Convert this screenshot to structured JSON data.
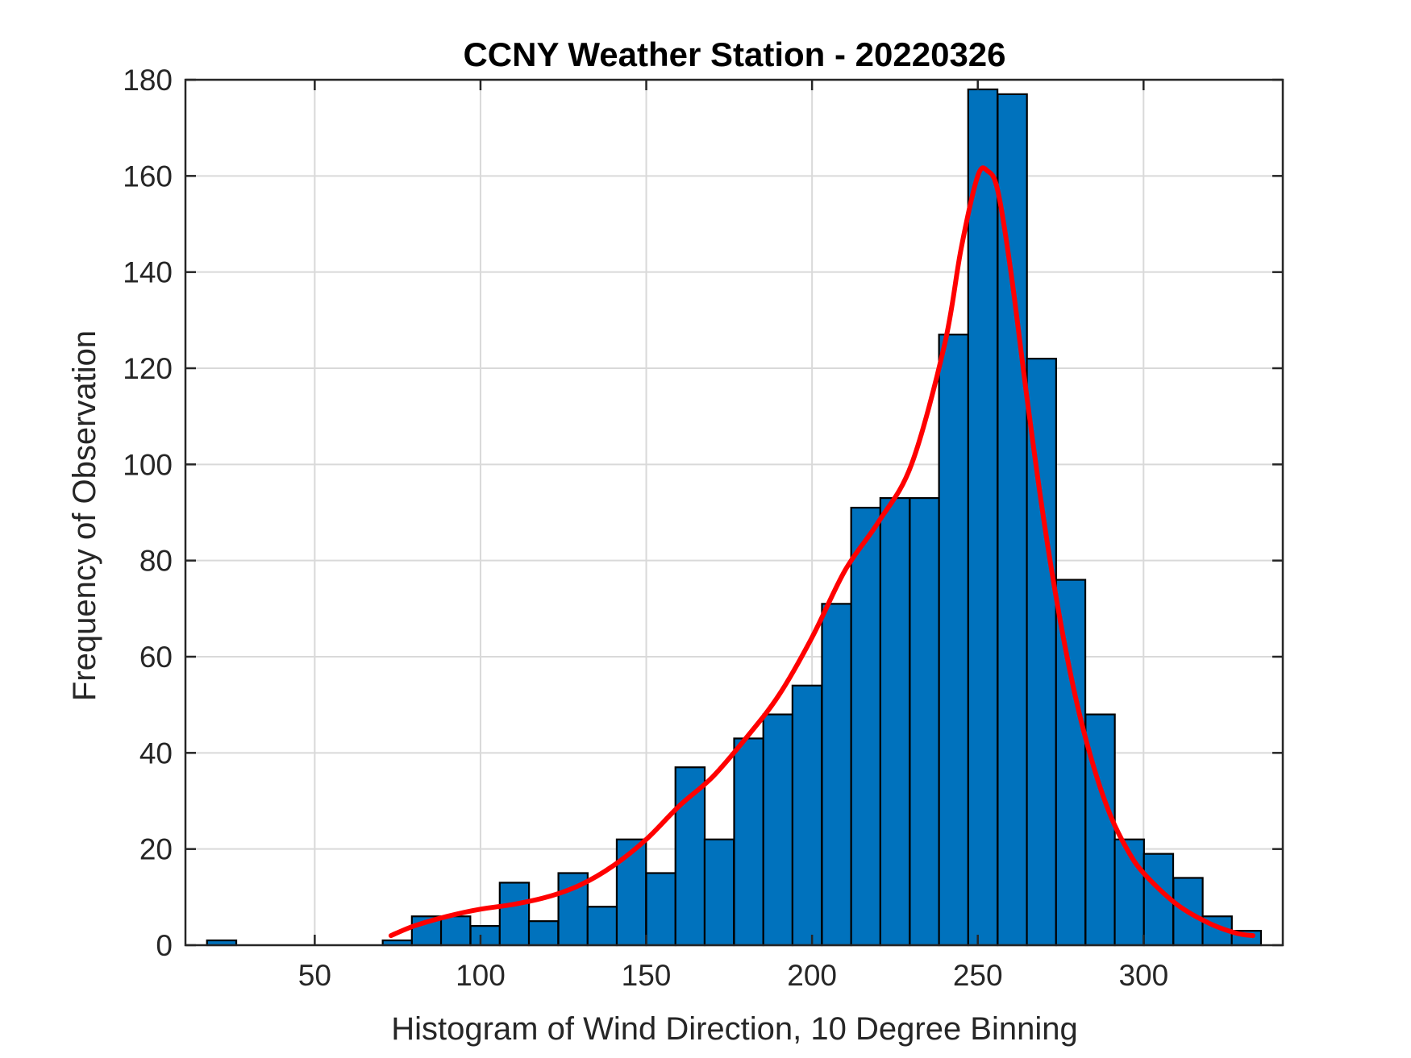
{
  "chart_data": {
    "type": "bar",
    "subtype": "histogram",
    "title": "CCNY Weather Station - 20220326",
    "xlabel": "Histogram of Wind Direction, 10 Degree Binning",
    "ylabel": "Frequency of Observation",
    "xlim": [
      11,
      342
    ],
    "ylim": [
      0,
      180
    ],
    "xticks": [
      50,
      100,
      150,
      200,
      250,
      300
    ],
    "yticks": [
      0,
      20,
      40,
      60,
      80,
      100,
      120,
      140,
      160,
      180
    ],
    "grid": true,
    "bin_width": 8.83,
    "bins": [
      {
        "x0": 17.5,
        "value": 1
      },
      {
        "x0": 26.3,
        "value": 0
      },
      {
        "x0": 35.1,
        "value": 0
      },
      {
        "x0": 44.0,
        "value": 0
      },
      {
        "x0": 52.8,
        "value": 0
      },
      {
        "x0": 61.6,
        "value": 0
      },
      {
        "x0": 70.5,
        "value": 1
      },
      {
        "x0": 79.3,
        "value": 6
      },
      {
        "x0": 88.1,
        "value": 6
      },
      {
        "x0": 97.0,
        "value": 4
      },
      {
        "x0": 105.8,
        "value": 13
      },
      {
        "x0": 114.6,
        "value": 5
      },
      {
        "x0": 123.5,
        "value": 15
      },
      {
        "x0": 132.3,
        "value": 8
      },
      {
        "x0": 141.1,
        "value": 22
      },
      {
        "x0": 150.0,
        "value": 15
      },
      {
        "x0": 158.8,
        "value": 37
      },
      {
        "x0": 167.6,
        "value": 22
      },
      {
        "x0": 176.5,
        "value": 43
      },
      {
        "x0": 185.3,
        "value": 48
      },
      {
        "x0": 194.1,
        "value": 54
      },
      {
        "x0": 203.0,
        "value": 71
      },
      {
        "x0": 211.8,
        "value": 91
      },
      {
        "x0": 220.6,
        "value": 93
      },
      {
        "x0": 229.5,
        "value": 93
      },
      {
        "x0": 238.3,
        "value": 127
      },
      {
        "x0": 247.1,
        "value": 178
      },
      {
        "x0": 256.0,
        "value": 177
      },
      {
        "x0": 264.8,
        "value": 122
      },
      {
        "x0": 273.6,
        "value": 76
      },
      {
        "x0": 282.5,
        "value": 48
      },
      {
        "x0": 291.3,
        "value": 22
      },
      {
        "x0": 300.1,
        "value": 19
      },
      {
        "x0": 309.0,
        "value": 14
      },
      {
        "x0": 317.8,
        "value": 6
      },
      {
        "x0": 326.6,
        "value": 3
      }
    ],
    "series": [
      {
        "type": "line",
        "x": [
          73,
          80,
          90,
          100,
          110,
          120,
          130,
          140,
          150,
          160,
          170,
          180,
          190,
          200,
          210,
          220,
          230,
          240,
          245,
          250,
          253,
          256,
          260,
          265,
          270,
          275,
          280,
          285,
          290,
          295,
          300,
          310,
          320,
          328,
          333
        ],
        "y": [
          2,
          4,
          6,
          7.5,
          8.5,
          10,
          12.5,
          16.5,
          22,
          29,
          35,
          43,
          52,
          64,
          78,
          88,
          100,
          125,
          145,
          160,
          161,
          157,
          140,
          113,
          88,
          67,
          50,
          37,
          27,
          20,
          15,
          8.5,
          4.5,
          2.5,
          2
        ]
      }
    ],
    "colors": {
      "bars": "#0072bd",
      "bar_edges": "#000000",
      "curve": "#ff0000",
      "grid": "#d9d9d9",
      "axes": "#262626"
    }
  }
}
